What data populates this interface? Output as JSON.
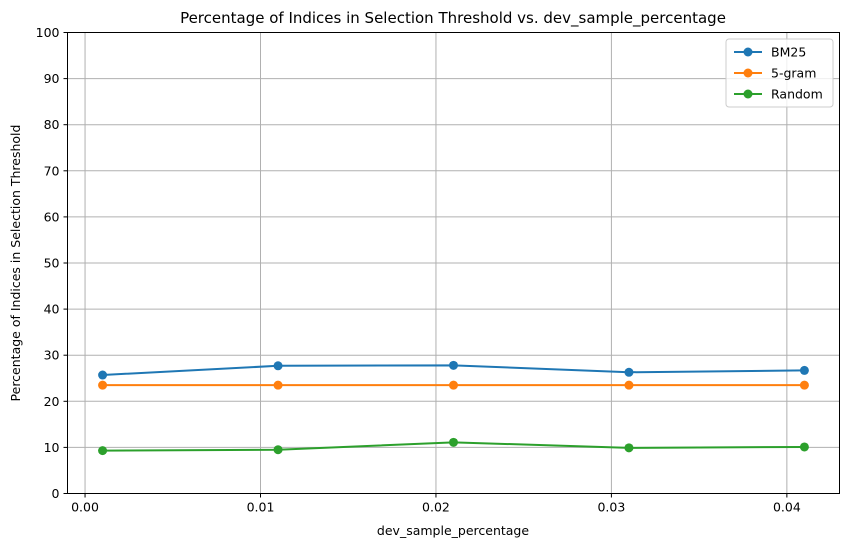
{
  "chart_data": {
    "type": "line",
    "title": "Percentage of Indices in Selection Threshold vs. dev_sample_percentage",
    "xlabel": "dev_sample_percentage",
    "ylabel": "Percentage of Indices in Selection Threshold",
    "x": [
      0.001,
      0.011,
      0.021,
      0.031,
      0.041
    ],
    "xlim": [
      -0.001,
      0.043
    ],
    "ylim": [
      0,
      100
    ],
    "xticks": [
      0.0,
      0.01,
      0.02,
      0.03,
      0.04
    ],
    "xtick_labels": [
      "0.00",
      "0.01",
      "0.02",
      "0.03",
      "0.04"
    ],
    "yticks": [
      0,
      10,
      20,
      30,
      40,
      50,
      60,
      70,
      80,
      90,
      100
    ],
    "ytick_labels": [
      "0",
      "10",
      "20",
      "30",
      "40",
      "50",
      "60",
      "70",
      "80",
      "90",
      "100"
    ],
    "grid": true,
    "legend_position": "top-right",
    "series": [
      {
        "name": "BM25",
        "color": "#1f77b4",
        "values": [
          25.7,
          27.7,
          27.8,
          26.3,
          26.7
        ]
      },
      {
        "name": "5-gram",
        "color": "#ff7f0e",
        "values": [
          23.5,
          23.5,
          23.5,
          23.5,
          23.5
        ]
      },
      {
        "name": "Random",
        "color": "#2ca02c",
        "values": [
          9.3,
          9.5,
          11.1,
          9.9,
          10.1
        ]
      }
    ]
  }
}
